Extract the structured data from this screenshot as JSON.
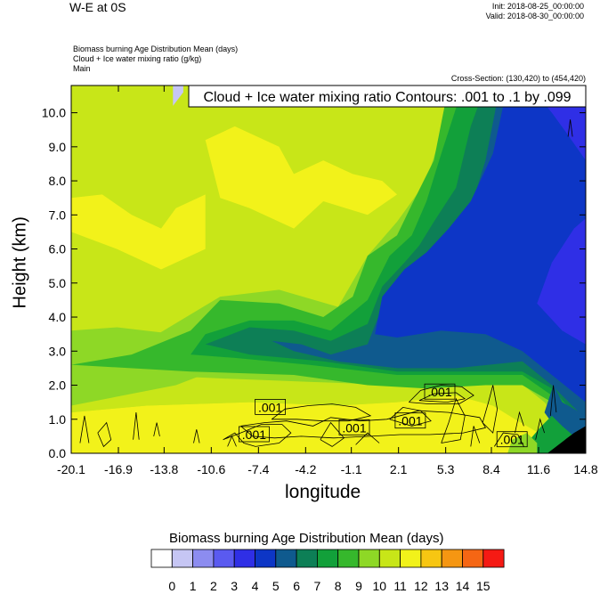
{
  "header": {
    "title": "W-E at 0S",
    "init": "Init: 2018-08-25_00:00:00",
    "valid": "Valid: 2018-08-30_00:00:00",
    "fields": [
      "Biomass burning Age Distribution Mean    (days)",
      "Cloud + Ice water mixing ratio    (g/kg)",
      "Main"
    ],
    "cross_section": "Cross-Section: (130,420) to (454,420)",
    "contour_info": "Cloud + Ice water mixing ratio Contours: .001 to .1 by .099"
  },
  "colors": {
    "c0": "#ffffff",
    "c1": "#c6c6f4",
    "c2": "#8c8cf0",
    "c3": "#5a5af0",
    "c4": "#2f2fe6",
    "c5": "#0d36c6",
    "c6": "#0f5a8e",
    "c7": "#0d7f56",
    "c8": "#12a03a",
    "c9": "#36b82c",
    "c10": "#8ed826",
    "c11": "#c8e618",
    "c12": "#f2f21a",
    "c13": "#f7c612",
    "c14": "#f59612",
    "c15": "#f56614",
    "c16": "#f51a14",
    "terrain": "#000000"
  },
  "chart_data": {
    "type": "heatmap",
    "xlabel": "longitude",
    "ylabel": "Height (km)",
    "x_ticks": [
      "-20.1",
      "-16.9",
      "-13.8",
      "-10.6",
      "-7.4",
      "-4.2",
      "-1.1",
      "2.1",
      "5.3",
      "8.4",
      "11.6",
      "14.8"
    ],
    "y_ticks": [
      "0.0",
      "1.0",
      "2.0",
      "3.0",
      "4.0",
      "5.0",
      "6.0",
      "7.0",
      "8.0",
      "9.0",
      "10.0"
    ],
    "xlim": [
      -20.1,
      14.8
    ],
    "ylim": [
      0.0,
      10.8
    ],
    "contour_labels": [
      {
        "text": ".001",
        "x": -6.6,
        "y": 1.35
      },
      {
        "text": ".001",
        "x": -7.7,
        "y": 0.55
      },
      {
        "text": ".001",
        "x": -0.9,
        "y": 0.75
      },
      {
        "text": ".001",
        "x": 2.9,
        "y": 0.95
      },
      {
        "text": ".001",
        "x": 4.9,
        "y": 1.8
      },
      {
        "text": ".001",
        "x": 9.8,
        "y": 0.4
      }
    ],
    "colorbar": {
      "title": "Biomass burning Age Distribution Mean  (days)",
      "labels": [
        "0",
        "1",
        "2",
        "3",
        "4",
        "5",
        "6",
        "7",
        "8",
        "9",
        "10",
        "11",
        "12",
        "13",
        "14",
        "15"
      ]
    }
  }
}
